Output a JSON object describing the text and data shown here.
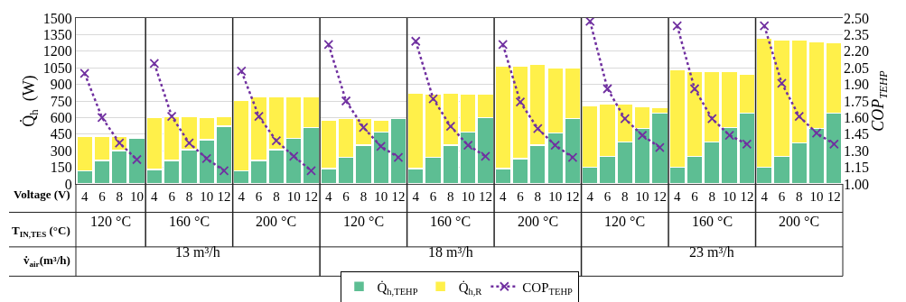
{
  "chart_data": {
    "type": "bar",
    "stacked": true,
    "categories": [
      "4",
      "6",
      "8",
      "10",
      "4",
      "6",
      "8",
      "10",
      "12",
      "4",
      "6",
      "8",
      "10",
      "12",
      "4",
      "6",
      "8",
      "10",
      "12",
      "4",
      "6",
      "8",
      "10",
      "12",
      "4",
      "6",
      "8",
      "10",
      "12",
      "4",
      "6",
      "8",
      "10",
      "12",
      "4",
      "6",
      "8",
      "10",
      "12",
      "4",
      "6",
      "8",
      "10",
      "12"
    ],
    "series": [
      {
        "name": "Q̇$_{h,TEHP}$",
        "color": "#5dbe93",
        "values": [
          120,
          210,
          300,
          410,
          130,
          210,
          310,
          400,
          520,
          120,
          210,
          310,
          410,
          510,
          140,
          240,
          350,
          470,
          590,
          140,
          240,
          350,
          470,
          600,
          140,
          230,
          350,
          460,
          590,
          150,
          250,
          380,
          500,
          640,
          150,
          250,
          380,
          510,
          640,
          150,
          250,
          370,
          500,
          640
        ]
      },
      {
        "name": "Q̇$_{h,R}$",
        "color": "#fff04a",
        "values": [
          310,
          220,
          130,
          null,
          470,
          400,
          300,
          200,
          90,
          640,
          580,
          480,
          380,
          280,
          440,
          350,
          240,
          110,
          null,
          680,
          570,
          470,
          340,
          210,
          930,
          840,
          730,
          590,
          460,
          560,
          470,
          340,
          200,
          50,
          880,
          770,
          640,
          510,
          350,
          1170,
          1050,
          930,
          790,
          640
        ]
      },
      {
        "name": "COP$_{TEHP}$",
        "type": "line",
        "axis": "y2",
        "color": "#7030a0",
        "marker": "cross",
        "line_style": "dotted",
        "values": [
          2.0,
          1.6,
          1.37,
          1.22,
          2.09,
          1.61,
          1.37,
          1.23,
          1.12,
          2.02,
          1.61,
          1.39,
          1.25,
          1.12,
          2.26,
          1.75,
          1.51,
          1.34,
          1.24,
          2.29,
          1.77,
          1.52,
          1.35,
          1.25,
          2.26,
          1.74,
          1.5,
          1.35,
          1.24,
          2.47,
          1.86,
          1.59,
          1.44,
          1.33,
          2.43,
          1.86,
          1.59,
          1.44,
          1.36,
          2.43,
          1.91,
          1.61,
          1.46,
          1.36
        ]
      }
    ],
    "ylabel": "Q̇$_{h}$  (W)",
    "y2label": "COP$_{TEHP}$",
    "ylim": [
      0,
      1500
    ],
    "yticks": [
      0,
      150,
      300,
      450,
      600,
      750,
      900,
      1050,
      1200,
      1350,
      1500
    ],
    "y2lim": [
      1.0,
      2.5
    ],
    "y2ticks": [
      {
        "value": 1.0,
        "label": "1.00"
      },
      {
        "value": 1.15,
        "label": "1.15"
      },
      {
        "value": 1.3,
        "label": "1.30"
      },
      {
        "value": 1.45,
        "label": "1.45"
      },
      {
        "value": 1.6,
        "label": "1.60"
      },
      {
        "value": 1.75,
        "label": "1.75"
      },
      {
        "value": 1.9,
        "label": "1.90"
      },
      {
        "value": 2.05,
        "label": "2.05"
      },
      {
        "value": 2.2,
        "label": "2.20"
      },
      {
        "value": 2.35,
        "label": "2.35"
      },
      {
        "value": 2.5,
        "label": "2.50"
      }
    ],
    "grid": "y",
    "legend": "bottom",
    "annotations": [
      "Voltage (V)",
      "T$_{IN,TES}$ (°C)",
      "v̇$_{air}$(m³/h)",
      "120 °C",
      "160 °C",
      "200 °C",
      "120 °C",
      "160 °C",
      "200 °C",
      "120 °C",
      "160 °C",
      "200 °C",
      "13 m³/h",
      "18 m³/h",
      "23 m³/h"
    ]
  }
}
